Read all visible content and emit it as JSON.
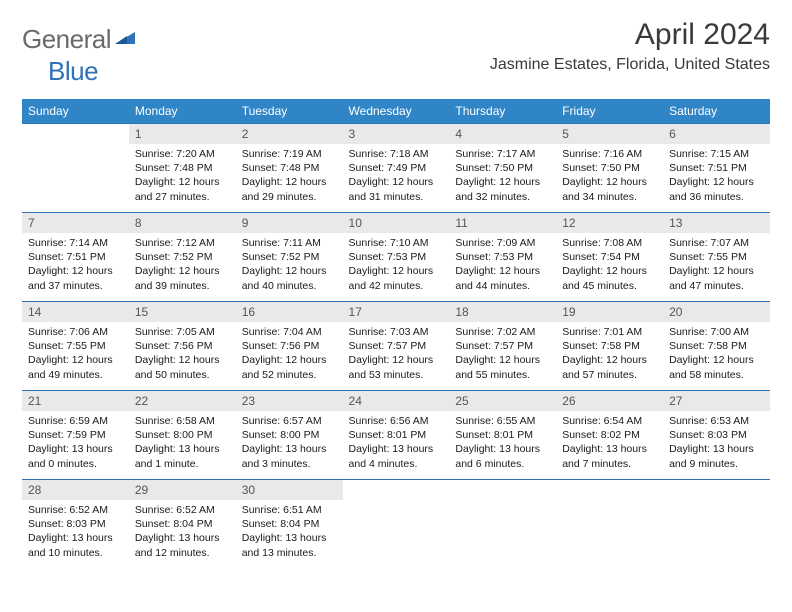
{
  "logo": {
    "text1": "General",
    "text2": "Blue",
    "primary_color": "#2f72b6",
    "gray": "#6a6a6a"
  },
  "title": "April 2024",
  "location": "Jasmine Estates, Florida, United States",
  "header_bg": "#2f85c6",
  "border_color": "#2f72b6",
  "daynum_bg": "#e9e9e9",
  "days": [
    "Sunday",
    "Monday",
    "Tuesday",
    "Wednesday",
    "Thursday",
    "Friday",
    "Saturday"
  ],
  "weeks": [
    [
      {
        "n": "",
        "sr": "",
        "ss": "",
        "dl": ""
      },
      {
        "n": "1",
        "sr": "Sunrise: 7:20 AM",
        "ss": "Sunset: 7:48 PM",
        "dl": "Daylight: 12 hours and 27 minutes."
      },
      {
        "n": "2",
        "sr": "Sunrise: 7:19 AM",
        "ss": "Sunset: 7:48 PM",
        "dl": "Daylight: 12 hours and 29 minutes."
      },
      {
        "n": "3",
        "sr": "Sunrise: 7:18 AM",
        "ss": "Sunset: 7:49 PM",
        "dl": "Daylight: 12 hours and 31 minutes."
      },
      {
        "n": "4",
        "sr": "Sunrise: 7:17 AM",
        "ss": "Sunset: 7:50 PM",
        "dl": "Daylight: 12 hours and 32 minutes."
      },
      {
        "n": "5",
        "sr": "Sunrise: 7:16 AM",
        "ss": "Sunset: 7:50 PM",
        "dl": "Daylight: 12 hours and 34 minutes."
      },
      {
        "n": "6",
        "sr": "Sunrise: 7:15 AM",
        "ss": "Sunset: 7:51 PM",
        "dl": "Daylight: 12 hours and 36 minutes."
      }
    ],
    [
      {
        "n": "7",
        "sr": "Sunrise: 7:14 AM",
        "ss": "Sunset: 7:51 PM",
        "dl": "Daylight: 12 hours and 37 minutes."
      },
      {
        "n": "8",
        "sr": "Sunrise: 7:12 AM",
        "ss": "Sunset: 7:52 PM",
        "dl": "Daylight: 12 hours and 39 minutes."
      },
      {
        "n": "9",
        "sr": "Sunrise: 7:11 AM",
        "ss": "Sunset: 7:52 PM",
        "dl": "Daylight: 12 hours and 40 minutes."
      },
      {
        "n": "10",
        "sr": "Sunrise: 7:10 AM",
        "ss": "Sunset: 7:53 PM",
        "dl": "Daylight: 12 hours and 42 minutes."
      },
      {
        "n": "11",
        "sr": "Sunrise: 7:09 AM",
        "ss": "Sunset: 7:53 PM",
        "dl": "Daylight: 12 hours and 44 minutes."
      },
      {
        "n": "12",
        "sr": "Sunrise: 7:08 AM",
        "ss": "Sunset: 7:54 PM",
        "dl": "Daylight: 12 hours and 45 minutes."
      },
      {
        "n": "13",
        "sr": "Sunrise: 7:07 AM",
        "ss": "Sunset: 7:55 PM",
        "dl": "Daylight: 12 hours and 47 minutes."
      }
    ],
    [
      {
        "n": "14",
        "sr": "Sunrise: 7:06 AM",
        "ss": "Sunset: 7:55 PM",
        "dl": "Daylight: 12 hours and 49 minutes."
      },
      {
        "n": "15",
        "sr": "Sunrise: 7:05 AM",
        "ss": "Sunset: 7:56 PM",
        "dl": "Daylight: 12 hours and 50 minutes."
      },
      {
        "n": "16",
        "sr": "Sunrise: 7:04 AM",
        "ss": "Sunset: 7:56 PM",
        "dl": "Daylight: 12 hours and 52 minutes."
      },
      {
        "n": "17",
        "sr": "Sunrise: 7:03 AM",
        "ss": "Sunset: 7:57 PM",
        "dl": "Daylight: 12 hours and 53 minutes."
      },
      {
        "n": "18",
        "sr": "Sunrise: 7:02 AM",
        "ss": "Sunset: 7:57 PM",
        "dl": "Daylight: 12 hours and 55 minutes."
      },
      {
        "n": "19",
        "sr": "Sunrise: 7:01 AM",
        "ss": "Sunset: 7:58 PM",
        "dl": "Daylight: 12 hours and 57 minutes."
      },
      {
        "n": "20",
        "sr": "Sunrise: 7:00 AM",
        "ss": "Sunset: 7:58 PM",
        "dl": "Daylight: 12 hours and 58 minutes."
      }
    ],
    [
      {
        "n": "21",
        "sr": "Sunrise: 6:59 AM",
        "ss": "Sunset: 7:59 PM",
        "dl": "Daylight: 13 hours and 0 minutes."
      },
      {
        "n": "22",
        "sr": "Sunrise: 6:58 AM",
        "ss": "Sunset: 8:00 PM",
        "dl": "Daylight: 13 hours and 1 minute."
      },
      {
        "n": "23",
        "sr": "Sunrise: 6:57 AM",
        "ss": "Sunset: 8:00 PM",
        "dl": "Daylight: 13 hours and 3 minutes."
      },
      {
        "n": "24",
        "sr": "Sunrise: 6:56 AM",
        "ss": "Sunset: 8:01 PM",
        "dl": "Daylight: 13 hours and 4 minutes."
      },
      {
        "n": "25",
        "sr": "Sunrise: 6:55 AM",
        "ss": "Sunset: 8:01 PM",
        "dl": "Daylight: 13 hours and 6 minutes."
      },
      {
        "n": "26",
        "sr": "Sunrise: 6:54 AM",
        "ss": "Sunset: 8:02 PM",
        "dl": "Daylight: 13 hours and 7 minutes."
      },
      {
        "n": "27",
        "sr": "Sunrise: 6:53 AM",
        "ss": "Sunset: 8:03 PM",
        "dl": "Daylight: 13 hours and 9 minutes."
      }
    ],
    [
      {
        "n": "28",
        "sr": "Sunrise: 6:52 AM",
        "ss": "Sunset: 8:03 PM",
        "dl": "Daylight: 13 hours and 10 minutes."
      },
      {
        "n": "29",
        "sr": "Sunrise: 6:52 AM",
        "ss": "Sunset: 8:04 PM",
        "dl": "Daylight: 13 hours and 12 minutes."
      },
      {
        "n": "30",
        "sr": "Sunrise: 6:51 AM",
        "ss": "Sunset: 8:04 PM",
        "dl": "Daylight: 13 hours and 13 minutes."
      },
      {
        "n": "",
        "sr": "",
        "ss": "",
        "dl": ""
      },
      {
        "n": "",
        "sr": "",
        "ss": "",
        "dl": ""
      },
      {
        "n": "",
        "sr": "",
        "ss": "",
        "dl": ""
      },
      {
        "n": "",
        "sr": "",
        "ss": "",
        "dl": ""
      }
    ]
  ]
}
